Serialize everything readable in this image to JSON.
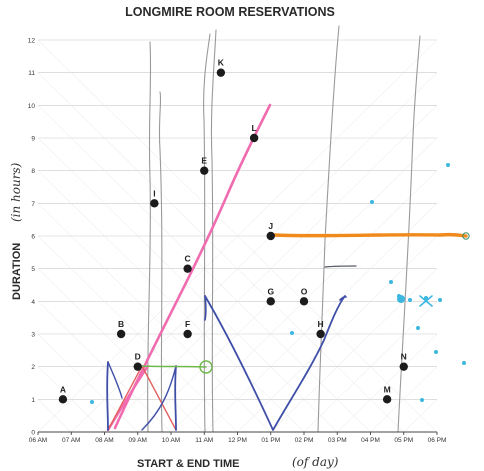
{
  "chart_data": {
    "type": "scatter",
    "title": "LONGMIRE ROOM RESERVATIONS",
    "xlabel": "START & END TIME",
    "xlabel_note": "(of day)",
    "ylabel": "DURATION",
    "ylabel_note": "(in hours)",
    "xlim": [
      6,
      18
    ],
    "ylim": [
      0,
      12
    ],
    "x_ticks": [
      {
        "value": 6,
        "label": "06 AM"
      },
      {
        "value": 7,
        "label": "07 AM"
      },
      {
        "value": 8,
        "label": "08 AM"
      },
      {
        "value": 9,
        "label": "09 AM"
      },
      {
        "value": 10,
        "label": "10 AM"
      },
      {
        "value": 11,
        "label": "11 AM"
      },
      {
        "value": 12,
        "label": "12 PM"
      },
      {
        "value": 13,
        "label": "01 PM"
      },
      {
        "value": 14,
        "label": "02 PM"
      },
      {
        "value": 15,
        "label": "03 PM"
      },
      {
        "value": 16,
        "label": "04 PM"
      },
      {
        "value": 17,
        "label": "05 PM"
      },
      {
        "value": 18,
        "label": "06 PM"
      }
    ],
    "y_ticks": [
      "0",
      "1",
      "2",
      "3",
      "4",
      "5",
      "6",
      "7",
      "8",
      "9",
      "10",
      "11",
      "12"
    ],
    "grid": true,
    "points": [
      {
        "label": "A",
        "x": 6.75,
        "y": 1
      },
      {
        "label": "B",
        "x": 8.5,
        "y": 3
      },
      {
        "label": "C",
        "x": 10.5,
        "y": 5
      },
      {
        "label": "D",
        "x": 9,
        "y": 2
      },
      {
        "label": "E",
        "x": 11,
        "y": 8
      },
      {
        "label": "F",
        "x": 10.5,
        "y": 3
      },
      {
        "label": "G",
        "x": 13,
        "y": 4
      },
      {
        "label": "H",
        "x": 14.5,
        "y": 3
      },
      {
        "label": "I",
        "x": 9.5,
        "y": 7
      },
      {
        "label": "J",
        "x": 13,
        "y": 6
      },
      {
        "label": "K",
        "x": 11.5,
        "y": 11
      },
      {
        "label": "L",
        "x": 12.5,
        "y": 9
      },
      {
        "label": "M",
        "x": 16.5,
        "y": 1
      },
      {
        "label": "N",
        "x": 17,
        "y": 2
      },
      {
        "label": "O",
        "x": 14,
        "y": 4
      }
    ],
    "annotations": {
      "colors": {
        "pink": "#f06bb0",
        "navy": "#3f4fa8",
        "orange": "#f08a1c",
        "green": "#6fb84a",
        "red": "#e46060",
        "cyan": "#3bb7e0",
        "gray": "#9a9a9a"
      }
    }
  }
}
